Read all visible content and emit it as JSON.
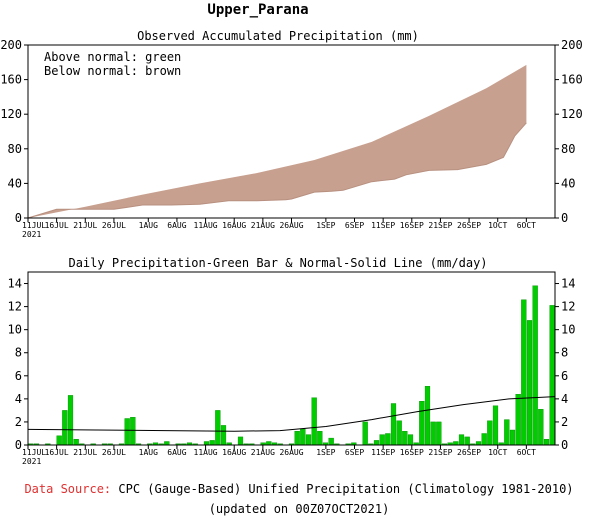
{
  "chart_data": [
    {
      "type": "area",
      "region": "Upper_Parana",
      "title": "Observed Accumulated Precipitation (mm)",
      "legend": {
        "above": "Above normal: green",
        "below": "Below normal: brown",
        "placement": "top-left"
      },
      "ylim": [
        0,
        200
      ],
      "yticks": [
        0,
        40,
        80,
        120,
        160,
        200
      ],
      "xtick_labels": [
        "11JUL\n2021",
        "16JUL",
        "21JUL",
        "26JUL",
        "1AUG",
        "6AUG",
        "11AUG",
        "16AUG",
        "21AUG",
        "26AUG",
        "1SEP",
        "6SEP",
        "11SEP",
        "16SEP",
        "21SEP",
        "26SEP",
        "1OCT",
        "6OCT"
      ],
      "colors": {
        "above": "#00cc00",
        "below": "#c8a090"
      },
      "series": [
        {
          "name": "Observed",
          "x": [
            0,
            5,
            10,
            15,
            20,
            25,
            30,
            35,
            40,
            45,
            46,
            50,
            53,
            55,
            60,
            64,
            66,
            70,
            75,
            80,
            83,
            85,
            87
          ],
          "values": [
            0,
            10,
            10,
            10,
            15,
            15,
            16,
            20,
            20,
            21,
            22,
            30,
            31,
            32,
            42,
            45,
            50,
            55,
            56,
            62,
            70,
            95,
            110
          ]
        },
        {
          "name": "Normal",
          "x": [
            0,
            10,
            20,
            30,
            40,
            50,
            60,
            70,
            80,
            87
          ],
          "values": [
            0,
            13,
            27,
            40,
            52,
            67,
            88,
            118,
            150,
            177
          ]
        }
      ]
    },
    {
      "type": "bar",
      "title": "Daily Precipitation-Green Bar & Normal-Solid Line (mm/day)",
      "ylim": [
        0,
        15
      ],
      "yticks": [
        0,
        2,
        4,
        6,
        8,
        10,
        12,
        14
      ],
      "xtick_labels": [
        "11JUL\n2021",
        "16JUL",
        "21JUL",
        "26JUL",
        "1AUG",
        "6AUG",
        "11AUG",
        "16AUG",
        "21AUG",
        "26AUG",
        "1SEP",
        "6SEP",
        "11SEP",
        "16SEP",
        "21SEP",
        "26SEP",
        "1OCT",
        "6OCT"
      ],
      "colors": {
        "bars": "#00cc00",
        "normal": "#000000"
      },
      "bars": [
        0.1,
        0.1,
        0.0,
        0.1,
        0.0,
        0.8,
        3.0,
        4.3,
        0.5,
        0.1,
        0.0,
        0.1,
        0.0,
        0.1,
        0.1,
        0.0,
        0.1,
        2.3,
        2.4,
        0.1,
        0.0,
        0.1,
        0.2,
        0.1,
        0.3,
        0.0,
        0.1,
        0.1,
        0.2,
        0.1,
        0.0,
        0.3,
        0.4,
        3.0,
        1.7,
        0.2,
        0.0,
        0.7,
        0.1,
        0.1,
        0.0,
        0.2,
        0.3,
        0.2,
        0.1,
        0.0,
        0.1,
        1.2,
        1.4,
        0.9,
        4.1,
        1.2,
        0.2,
        0.6,
        0.1,
        0.0,
        0.1,
        0.2,
        0.0,
        2.0,
        0.1,
        0.4,
        0.9,
        1.0,
        3.6,
        2.1,
        1.2,
        0.9,
        0.2,
        3.8,
        5.1,
        2.0,
        2.0,
        0.1,
        0.2,
        0.3,
        0.9,
        0.7,
        0.1,
        0.3,
        1.0,
        2.1,
        3.4,
        0.2,
        2.2,
        1.3,
        4.4,
        12.6,
        10.8,
        13.8,
        3.1,
        0.5,
        12.1
      ],
      "normal": {
        "name": "Normal",
        "x": [
          0,
          12,
          24,
          36,
          44,
          52,
          60,
          68,
          76,
          84,
          92
        ],
        "values": [
          1.35,
          1.3,
          1.25,
          1.2,
          1.25,
          1.6,
          2.2,
          2.9,
          3.5,
          4.0,
          4.2
        ]
      }
    }
  ],
  "footer": {
    "source_label": "Data Source:",
    "source_text": " CPC (Gauge-Based) Unified Precipitation (Climatology 1981-2010)",
    "updated": "(updated on 00Z07OCT2021)"
  }
}
